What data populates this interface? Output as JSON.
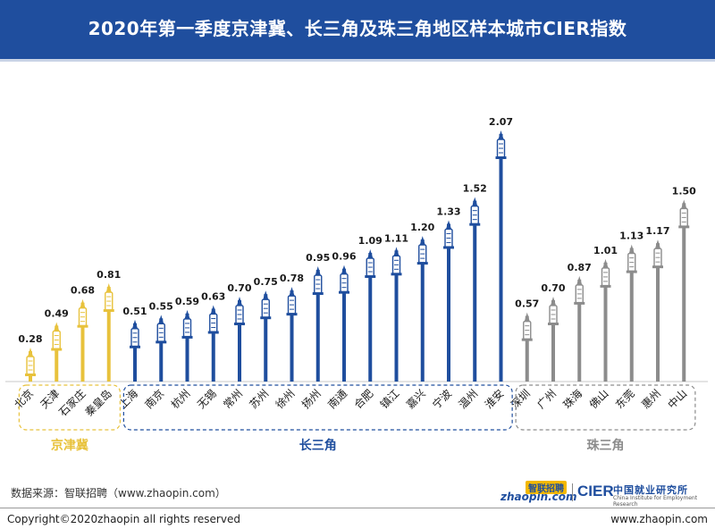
{
  "title": "2020年第一季度京津冀、长三角及珠三角地区样本城市CIER指数",
  "chart_data": {
    "type": "bar",
    "groups": [
      {
        "name": "京津冀",
        "color": "#e8c23c",
        "categories": [
          "北京",
          "天津",
          "石家庄",
          "秦皇岛"
        ],
        "values": [
          0.28,
          0.49,
          0.68,
          0.81
        ]
      },
      {
        "name": "长三角",
        "color": "#1f4e9e",
        "categories": [
          "上海",
          "南京",
          "杭州",
          "无锡",
          "常州",
          "苏州",
          "徐州",
          "扬州",
          "南通",
          "合肥",
          "镇江",
          "嘉兴",
          "宁波",
          "温州",
          "淮安"
        ],
        "values": [
          0.51,
          0.55,
          0.59,
          0.63,
          0.7,
          0.75,
          0.78,
          0.95,
          0.96,
          1.09,
          1.11,
          1.2,
          1.33,
          1.52,
          2.07
        ]
      },
      {
        "name": "珠三角",
        "color": "#8c8c8c",
        "categories": [
          "深圳",
          "广州",
          "珠海",
          "佛山",
          "东莞",
          "惠州",
          "中山"
        ],
        "values": [
          0.57,
          0.7,
          0.87,
          1.01,
          1.13,
          1.17,
          1.5
        ]
      }
    ],
    "value_labels": [
      "0.28",
      "0.49",
      "0.68",
      "0.81",
      "0.51",
      "0.55",
      "0.59",
      "0.63",
      "0.70",
      "0.75",
      "0.78",
      "0.95",
      "0.96",
      "1.09",
      "1.11",
      "1.20",
      "1.33",
      "1.52",
      "2.07",
      "0.57",
      "0.70",
      "0.87",
      "1.01",
      "1.13",
      "1.17",
      "1.50"
    ],
    "ylim": [
      0,
      2.07
    ],
    "grid": false
  },
  "footer": {
    "source": "数据来源：智联招聘（www.zhaopin.com）",
    "copyright": "Copyright©2020zhaopin all rights reserved",
    "website": "www.zhaopin.com"
  },
  "logos": {
    "zhaopin_top": "智联招聘",
    "zhaopin_main": "zhaopin.com",
    "cier": "CIER",
    "cier_cn": "中国就业研究所",
    "cier_en": "China Institute for Employment Research"
  }
}
